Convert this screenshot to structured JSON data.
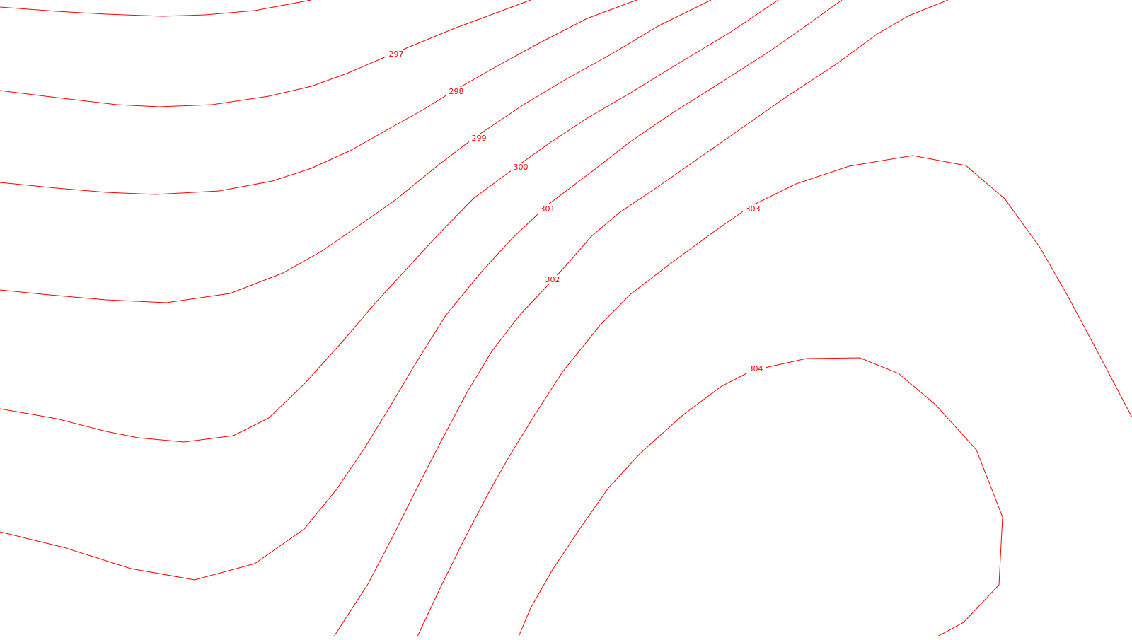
{
  "map": {
    "line_color": "#ff0000",
    "background_color": "#ffffff",
    "contour_labels": [
      "297",
      "298",
      "299",
      "300",
      "301",
      "302",
      "303",
      "304"
    ]
  }
}
